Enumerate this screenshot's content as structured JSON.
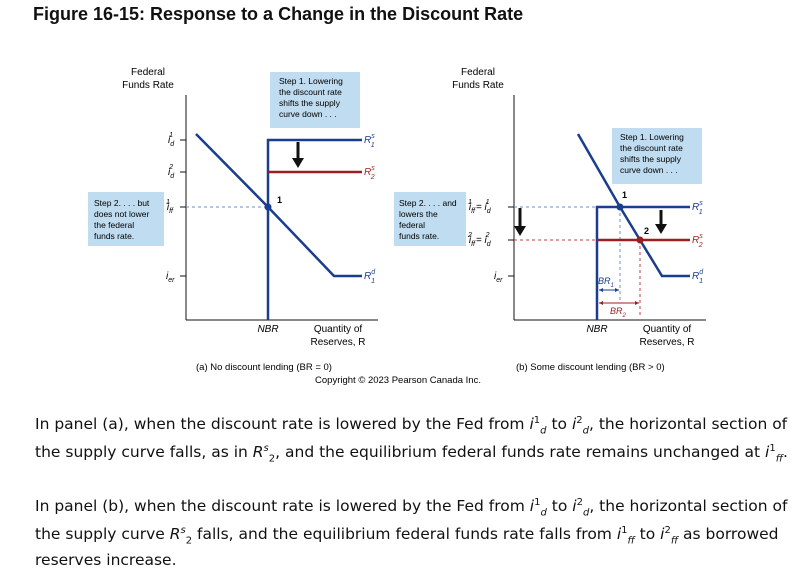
{
  "title": "Figure 16-15: Response to a Change in the Discount Rate",
  "colors": {
    "demand": "#1b3d8f",
    "supply": "#1b3d8f",
    "new_supply": "#9c1f1f",
    "note_bg": "#bfdcf0",
    "dash": "#6a8fc7"
  },
  "panel_a": {
    "y_axis_label_line1": "Federal",
    "y_axis_label_line2": "Funds Rate",
    "note_step1": [
      "Step 1. Lowering",
      "the discount rate",
      "shifts the supply",
      "curve down . . ."
    ],
    "note_step2": [
      "Step 2. . . . but",
      "does not lower",
      "the federal",
      "funds rate."
    ],
    "tick_id1_main": "i",
    "tick_id1_sub": "d",
    "tick_id1_sup": "1",
    "tick_id2_main": "i",
    "tick_id2_sub": "d",
    "tick_id2_sup": "2",
    "tick_iff1_main": "i",
    "tick_iff1_sub": "ff",
    "tick_iff1_sup": "1",
    "tick_ier_main": "i",
    "tick_ier_sub": "er",
    "label_rs1": "R",
    "label_rs1_sup": "s",
    "label_rs1_sub": "1",
    "label_rs2": "R",
    "label_rs2_sup": "s",
    "label_rs2_sub": "2",
    "label_rd1": "R",
    "label_rd1_sup": "d",
    "label_rd1_sub": "1",
    "point_1": "1",
    "x_tick_nbr": "NBR",
    "x_axis_label_line1": "Quantity of",
    "x_axis_label_line2": "Reserves, R",
    "caption": "(a) No discount lending (BR = 0)"
  },
  "panel_b": {
    "y_axis_label_line1": "Federal",
    "y_axis_label_line2": "Funds Rate",
    "note_step1": [
      "Step 1. Lowering",
      "the discount rate",
      "shifts the supply",
      "curve down . . ."
    ],
    "note_step2": [
      "Step 2. . . . and",
      "lowers the",
      "federal",
      "funds rate."
    ],
    "tick_upper": "i",
    "tick_upper_sub": "ff",
    "tick_upper_sup": "1",
    "tick_upper_eq": "= i",
    "tick_upper_eq_sub": "d",
    "tick_upper_eq_sup": "1",
    "tick_lower_sub": "ff",
    "tick_lower_sup": "2",
    "tick_lower_eq_sub": "d",
    "tick_lower_eq_sup": "2",
    "tick_ier_main": "i",
    "tick_ier_sub": "er",
    "label_rs1": "R",
    "label_rs1_sup": "s",
    "label_rs1_sub": "1",
    "label_rs2": "R",
    "label_rs2_sup": "s",
    "label_rs2_sub": "2",
    "label_rd1": "R",
    "label_rd1_sup": "d",
    "label_rd1_sub": "1",
    "point_1": "1",
    "point_2": "2",
    "br1": "BR",
    "br1_sub": "1",
    "br2": "BR",
    "br2_sub": "2",
    "x_tick_nbr": "NBR",
    "x_axis_label_line1": "Quantity of",
    "x_axis_label_line2": "Reserves, R",
    "caption": "(b) Some discount lending (BR > 0)"
  },
  "copyright": "Copyright © 2023 Pearson Canada Inc.",
  "paragraph1": {
    "a": "In panel (a), when the discount rate is lowered by the Fed from ",
    "sym1": "i",
    "sym1_sup": "1",
    "sym1_sub": "d",
    "b": " to ",
    "sym2": "i",
    "sym2_sup": "2",
    "sym2_sub": "d",
    "c": ", the horizontal section of the supply curve falls, as in ",
    "sym3": "R",
    "sym3_sup": "s",
    "sym3_sub": "2",
    "d": ", and the equilibrium federal funds rate remains unchanged at ",
    "sym4": "i",
    "sym4_sup": "1",
    "sym4_sub": "ff",
    "e": "."
  },
  "paragraph2": {
    "a": "In panel (b), when the discount rate is lowered by the Fed from ",
    "sym1": "i",
    "sym1_sup": "1",
    "sym1_sub": "d",
    "b": " to ",
    "sym2": "i",
    "sym2_sup": "2",
    "sym2_sub": "d",
    "c": ", the horizontal section of the supply curve ",
    "sym3": "R",
    "sym3_sup": "s",
    "sym3_sub": "2",
    "d": " falls, and the equilibrium federal funds rate falls from ",
    "sym4": "i",
    "sym4_sup": "1",
    "sym4_sub": "ff",
    "e": " to ",
    "sym5": "i",
    "sym5_sup": "2",
    "sym5_sub": "ff",
    "f": " as borrowed reserves increase."
  }
}
